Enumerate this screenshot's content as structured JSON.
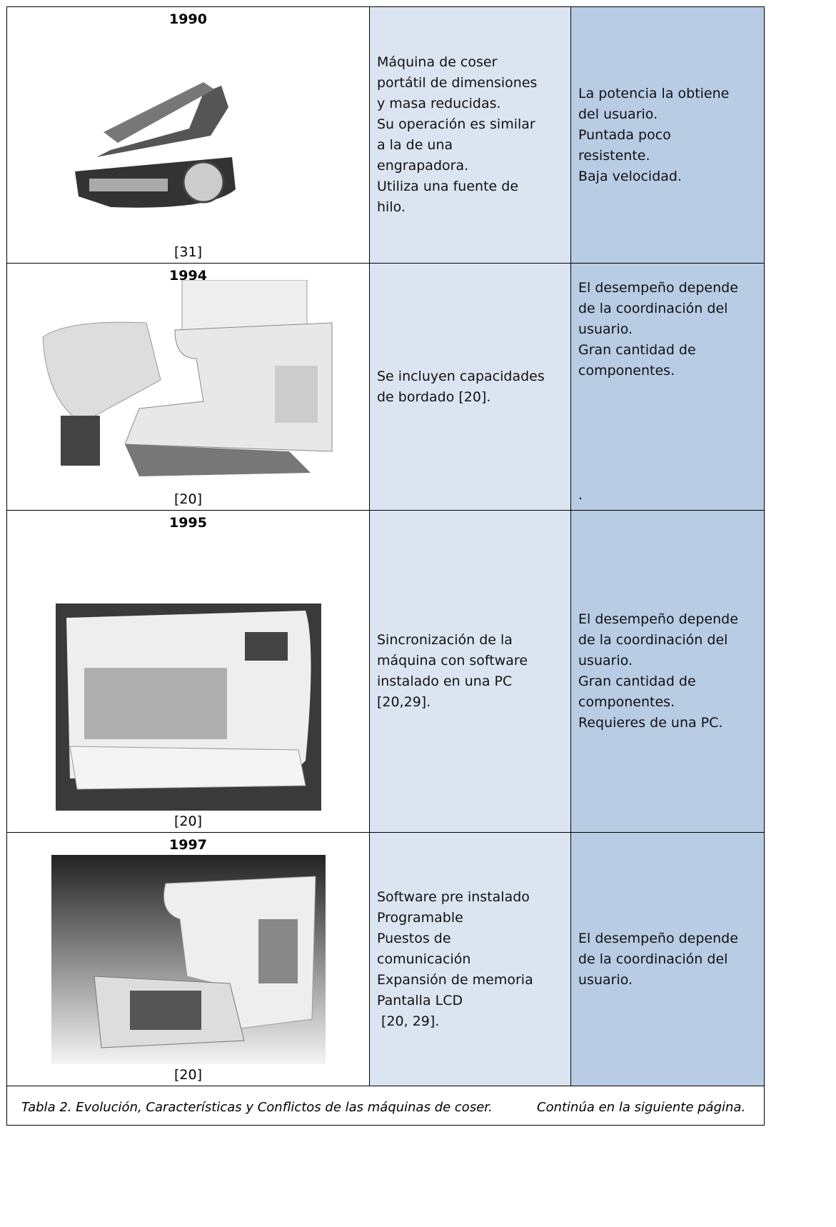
{
  "table": {
    "rows": [
      {
        "year": "1990",
        "source": "[31]",
        "features": [
          "Máquina de coser",
          "portátil de dimensiones",
          "y masa reducidas.",
          "Su operación es similar",
          "a la de una",
          "engrapadora.",
          "Utiliza una fuente de",
          "hilo."
        ],
        "conflicts": [
          "La potencia la obtiene",
          "del usuario.",
          "Puntada poco",
          "resistente.",
          "Baja velocidad."
        ]
      },
      {
        "year": "1994",
        "source": "[20]",
        "features": [
          "Se incluyen capacidades",
          "de bordado [20]."
        ],
        "conflicts": [
          "El desempeño depende",
          "de la coordinación del",
          "usuario.",
          "Gran cantidad de",
          "componentes."
        ],
        "end_mark": "."
      },
      {
        "year": "1995",
        "source": "[20]",
        "features": [
          "Sincronización de la",
          "máquina con software",
          "instalado en una PC",
          "[20,29]."
        ],
        "conflicts": [
          "El desempeño depende",
          "de la coordinación del",
          "usuario.",
          "Gran cantidad de",
          "componentes.",
          "Requieres de una PC."
        ]
      },
      {
        "year": "1997",
        "source": "[20]",
        "features": [
          "Software pre instalado",
          "Programable",
          "Puestos de",
          "comunicación",
          "Expansión de memoria",
          "Pantalla LCD",
          " [20, 29]."
        ],
        "conflicts": [
          "El desempeño depende",
          "de la coordinación del",
          "usuario."
        ]
      }
    ]
  },
  "caption": {
    "text": "Tabla 2. Evolución, Características y Conflictos de las máquinas de coser.",
    "note": "Continúa en la siguiente página."
  }
}
